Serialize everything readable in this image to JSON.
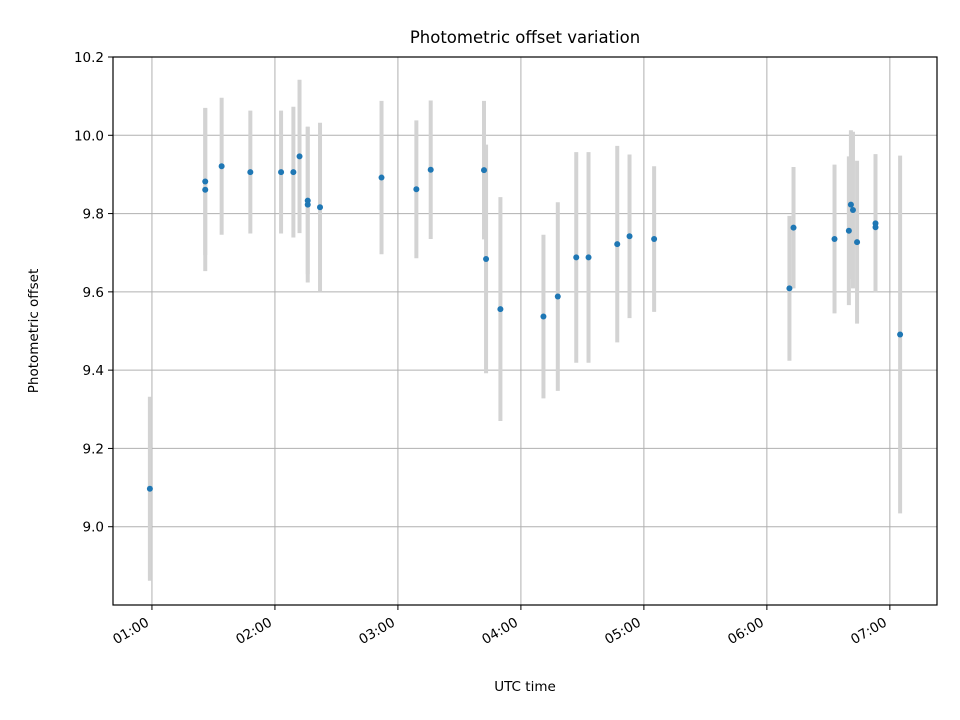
{
  "chart_data": {
    "type": "scatter",
    "title": "Photometric offset variation",
    "xlabel": "UTC time",
    "ylabel": "Photometric offset",
    "x_axis": {
      "type": "time",
      "range": [
        "00:41",
        "07:23"
      ],
      "ticks": [
        "01:00",
        "02:00",
        "03:00",
        "04:00",
        "05:00",
        "06:00",
        "07:00"
      ]
    },
    "y_axis": {
      "range": [
        8.8,
        10.2
      ],
      "ticks": [
        "9.0",
        "9.2",
        "9.4",
        "9.6",
        "9.8",
        "10.0",
        "10.2"
      ]
    },
    "grid": true,
    "legend": "none",
    "colors": {
      "points": "#1f77b4",
      "errorbars": "#d3d3d3",
      "grid": "#b0b0b0"
    },
    "points": [
      {
        "x": "00:59",
        "y": 9.097,
        "err": 0.235
      },
      {
        "x": "01:26",
        "y": 9.861,
        "err": 0.208
      },
      {
        "x": "01:26",
        "y": 9.882,
        "err": 0.188
      },
      {
        "x": "01:34",
        "y": 9.921,
        "err": 0.175
      },
      {
        "x": "01:48",
        "y": 9.906,
        "err": 0.157
      },
      {
        "x": "02:03",
        "y": 9.906,
        "err": 0.157
      },
      {
        "x": "02:09",
        "y": 9.906,
        "err": 0.167
      },
      {
        "x": "02:12",
        "y": 9.946,
        "err": 0.196
      },
      {
        "x": "02:16",
        "y": 9.833,
        "err": 0.188
      },
      {
        "x": "02:16",
        "y": 9.823,
        "err": 0.199
      },
      {
        "x": "02:22",
        "y": 9.816,
        "err": 0.216
      },
      {
        "x": "02:52",
        "y": 9.892,
        "err": 0.196
      },
      {
        "x": "03:09",
        "y": 9.862,
        "err": 0.176
      },
      {
        "x": "03:16",
        "y": 9.912,
        "err": 0.177
      },
      {
        "x": "03:42",
        "y": 9.911,
        "err": 0.177
      },
      {
        "x": "03:43",
        "y": 9.684,
        "err": 0.292
      },
      {
        "x": "03:50",
        "y": 9.556,
        "err": 0.286
      },
      {
        "x": "04:11",
        "y": 9.537,
        "err": 0.209
      },
      {
        "x": "04:18",
        "y": 9.588,
        "err": 0.241
      },
      {
        "x": "04:27",
        "y": 9.688,
        "err": 0.269
      },
      {
        "x": "04:33",
        "y": 9.688,
        "err": 0.269
      },
      {
        "x": "04:47",
        "y": 9.722,
        "err": 0.251
      },
      {
        "x": "04:53",
        "y": 9.742,
        "err": 0.209
      },
      {
        "x": "05:05",
        "y": 9.735,
        "err": 0.186
      },
      {
        "x": "06:11",
        "y": 9.609,
        "err": 0.185
      },
      {
        "x": "06:13",
        "y": 9.764,
        "err": 0.155
      },
      {
        "x": "06:33",
        "y": 9.735,
        "err": 0.19
      },
      {
        "x": "06:40",
        "y": 9.756,
        "err": 0.19
      },
      {
        "x": "06:41",
        "y": 9.823,
        "err": 0.19
      },
      {
        "x": "06:42",
        "y": 9.809,
        "err": 0.2
      },
      {
        "x": "06:44",
        "y": 9.727,
        "err": 0.208
      },
      {
        "x": "06:53",
        "y": 9.775,
        "err": 0.177
      },
      {
        "x": "06:53",
        "y": 9.765,
        "err": 0.155
      },
      {
        "x": "07:05",
        "y": 9.491,
        "err": 0.457
      }
    ]
  }
}
